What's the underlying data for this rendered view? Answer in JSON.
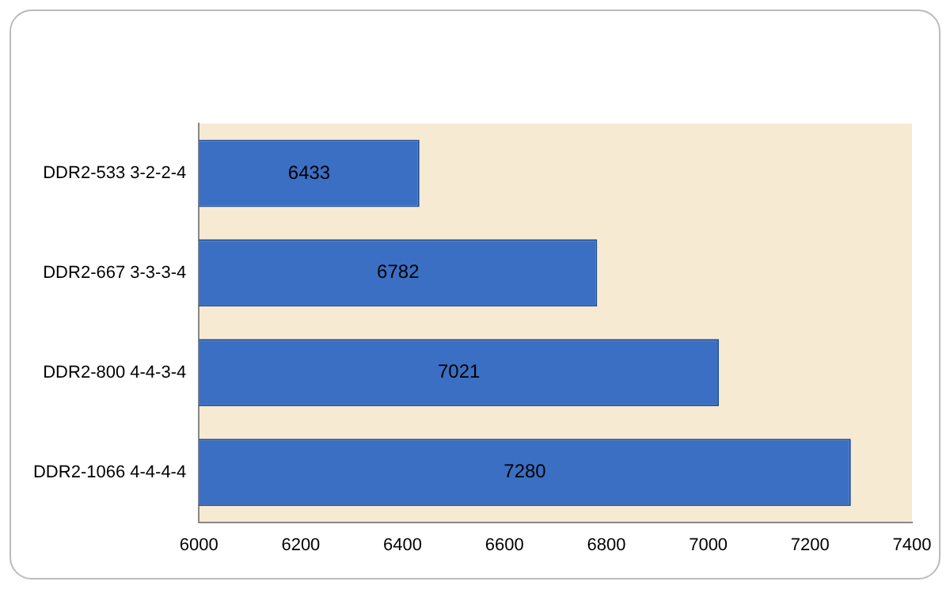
{
  "chart_data": {
    "type": "bar",
    "orientation": "horizontal",
    "categories": [
      "DDR2-533 3-2-2-4",
      "DDR2-667 3-3-3-4",
      "DDR2-800 4-4-3-4",
      "DDR2-1066 4-4-4-4"
    ],
    "values": [
      6433,
      6782,
      7021,
      7280
    ],
    "color": "#3b6fc3",
    "xlim": [
      6000,
      7400
    ],
    "xticks": [
      6000,
      6200,
      6400,
      6600,
      6800,
      7000,
      7200,
      7400
    ],
    "data_labels": true,
    "grid": false,
    "legend": false
  }
}
